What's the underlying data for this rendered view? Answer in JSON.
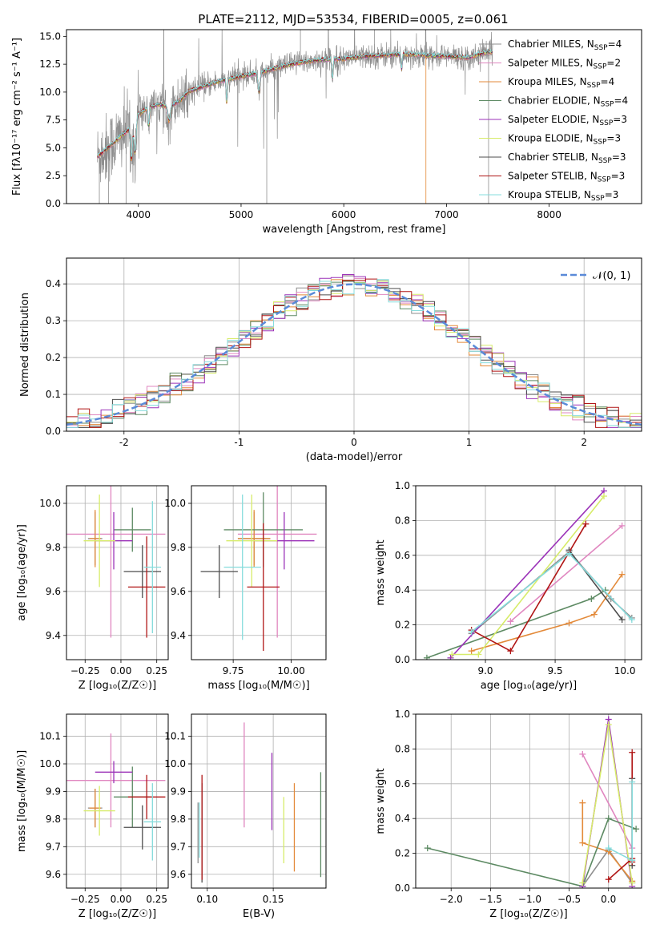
{
  "figure_title": "PLATE=2112, MJD=53534, FIBERID=0005, z=0.061",
  "colors": {
    "chabrier_miles": "#8e8e8e",
    "salpeter_miles": "#e087c0",
    "kroupa_miles": "#e38a3a",
    "chabrier_elodie": "#5d8a63",
    "salpeter_elodie": "#9b32b8",
    "kroupa_elodie": "#d7ec6a",
    "chabrier_stelib": "#4d4d4d",
    "salpeter_stelib": "#b01515",
    "kroupa_stelib": "#86dcdc",
    "normal_curve": "#5a8ad8",
    "grid": "#b0b0b0"
  },
  "chart_data": [
    {
      "id": "spectrum",
      "type": "line",
      "title": "PLATE=2112, MJD=53534, FIBERID=0005, z=0.061",
      "xlabel": "wavelength [Angstrom, rest frame]",
      "ylabel": "Flux [fλ10⁻¹⁷ erg cm⁻² s⁻¹ A⁻¹]",
      "xlim": [
        3300,
        8900
      ],
      "ylim": [
        0,
        15.6
      ],
      "xticks": [
        4000,
        5000,
        6000,
        7000,
        8000
      ],
      "yticks": [
        0.0,
        2.5,
        5.0,
        7.5,
        10.0,
        12.5,
        15.0
      ],
      "grid": false,
      "legend_position": "right",
      "legend": [
        {
          "label": "Chabrier MILES, N",
          "sub": "SSP",
          "suffix": "=4",
          "color_key": "chabrier_miles"
        },
        {
          "label": "Salpeter MILES, N",
          "sub": "SSP",
          "suffix": "=2",
          "color_key": "salpeter_miles"
        },
        {
          "label": "Kroupa MILES, N",
          "sub": "SSP",
          "suffix": "=4",
          "color_key": "kroupa_miles"
        },
        {
          "label": "Chabrier ELODIE, N",
          "sub": "SSP",
          "suffix": "=4",
          "color_key": "chabrier_elodie"
        },
        {
          "label": "Salpeter ELODIE, N",
          "sub": "SSP",
          "suffix": "=3",
          "color_key": "salpeter_elodie"
        },
        {
          "label": "Kroupa ELODIE, N",
          "sub": "SSP",
          "suffix": "=3",
          "color_key": "kroupa_elodie"
        },
        {
          "label": "Chabrier STELIB, N",
          "sub": "SSP",
          "suffix": "=3",
          "color_key": "chabrier_stelib"
        },
        {
          "label": "Salpeter STELIB, N",
          "sub": "SSP",
          "suffix": "=3",
          "color_key": "salpeter_stelib"
        },
        {
          "label": "Kroupa STELIB, N",
          "sub": "SSP",
          "suffix": "=3",
          "color_key": "kroupa_stelib"
        }
      ],
      "continuum": {
        "x": [
          3600,
          3700,
          3800,
          3900,
          4000,
          4100,
          4200,
          4300,
          4400,
          4500,
          4600,
          4800,
          5000,
          5200,
          5400,
          5600,
          5800,
          6000,
          6200,
          6400,
          6600,
          6800,
          7000,
          7200,
          7400
        ],
        "y": [
          4.2,
          5.0,
          5.8,
          6.6,
          8.0,
          8.6,
          8.9,
          8.7,
          9.2,
          10.1,
          10.4,
          11.0,
          11.4,
          11.8,
          12.3,
          12.7,
          12.9,
          13.0,
          13.2,
          13.3,
          13.4,
          13.3,
          13.2,
          13.1,
          13.6
        ]
      },
      "model_range": [
        3600,
        7450
      ],
      "observed_range": [
        3600,
        7450
      ]
    },
    {
      "id": "residuals",
      "type": "histogram",
      "xlabel": "(data-model)/error",
      "ylabel": "Normed distribution",
      "xlim": [
        -2.5,
        2.5
      ],
      "ylim": [
        0,
        0.47
      ],
      "xticks": [
        -2,
        -1,
        0,
        1,
        2
      ],
      "yticks": [
        0.0,
        0.1,
        0.2,
        0.3,
        0.4
      ],
      "grid": true,
      "legend_position": "top-right",
      "legend_label": "𝒩(0, 1)",
      "bin_width": 0.1,
      "bin_start": -2.5
    },
    {
      "id": "age-vs-Z",
      "type": "errorbar",
      "xlabel": "Z [log₁₀(Z/Z☉)]",
      "ylabel": "age  [log₁₀(age/yr)]",
      "xlim": [
        -0.38,
        0.33
      ],
      "ylim": [
        9.29,
        10.08
      ],
      "xticks": [
        -0.25,
        0.0,
        0.25
      ],
      "xticklabels": [
        "−0.25",
        "0.00",
        "0.25"
      ],
      "yticks": [
        9.4,
        9.6,
        9.8,
        10.0
      ],
      "grid": true,
      "points": [
        {
          "model": "chabrier_miles",
          "x": -0.18,
          "xerr": 0.05,
          "y": 9.84,
          "yerr": 0.12
        },
        {
          "model": "salpeter_miles",
          "x": -0.07,
          "xerr": 0.38,
          "y": 9.86,
          "yerr": 0.47
        },
        {
          "model": "kroupa_miles",
          "x": -0.18,
          "xerr": 0.04,
          "y": 9.84,
          "yerr": 0.13
        },
        {
          "model": "chabrier_elodie",
          "x": 0.08,
          "xerr": 0.13,
          "y": 9.88,
          "yerr": 0.1
        },
        {
          "model": "salpeter_elodie",
          "x": -0.05,
          "xerr": 0.13,
          "y": 9.83,
          "yerr": 0.13
        },
        {
          "model": "kroupa_elodie",
          "x": -0.15,
          "xerr": 0.11,
          "y": 9.83,
          "yerr": 0.21
        },
        {
          "model": "chabrier_stelib",
          "x": 0.15,
          "xerr": 0.13,
          "y": 9.69,
          "yerr": 0.12
        },
        {
          "model": "salpeter_stelib",
          "x": 0.18,
          "xerr": 0.13,
          "y": 9.62,
          "yerr": 0.23
        },
        {
          "model": "kroupa_stelib",
          "x": 0.22,
          "xerr": 0.06,
          "y": 9.71,
          "yerr": 0.3
        }
      ]
    },
    {
      "id": "age-vs-mass",
      "type": "errorbar",
      "xlabel": "mass [log₁₀(M/M☉)]",
      "ylabel": "",
      "xlim": [
        9.57,
        10.15
      ],
      "ylim": [
        9.29,
        10.08
      ],
      "xticks": [
        9.75,
        10.0
      ],
      "xticklabels": [
        "9.75",
        "10.00"
      ],
      "yticks": [
        9.4,
        9.6,
        9.8,
        10.0
      ],
      "grid": true,
      "points": [
        {
          "model": "chabrier_miles",
          "x": 9.84,
          "xerr": 0.07,
          "y": 9.84,
          "yerr": 0.12
        },
        {
          "model": "salpeter_miles",
          "x": 9.94,
          "xerr": 0.17,
          "y": 9.86,
          "yerr": 0.47
        },
        {
          "model": "kroupa_miles",
          "x": 9.84,
          "xerr": 0.07,
          "y": 9.84,
          "yerr": 0.13
        },
        {
          "model": "chabrier_elodie",
          "x": 9.88,
          "xerr": 0.17,
          "y": 9.88,
          "yerr": 0.17
        },
        {
          "model": "salpeter_elodie",
          "x": 9.97,
          "xerr": 0.13,
          "y": 9.83,
          "yerr": 0.13
        },
        {
          "model": "kroupa_elodie",
          "x": 9.83,
          "xerr": 0.11,
          "y": 9.83,
          "yerr": 0.21
        },
        {
          "model": "chabrier_stelib",
          "x": 9.69,
          "xerr": 0.08,
          "y": 9.69,
          "yerr": 0.12
        },
        {
          "model": "salpeter_stelib",
          "x": 9.88,
          "xerr": 0.07,
          "y": 9.62,
          "yerr": 0.29
        },
        {
          "model": "kroupa_stelib",
          "x": 9.79,
          "xerr": 0.08,
          "y": 9.71,
          "yerr": 0.33
        }
      ]
    },
    {
      "id": "massweight-vs-age",
      "type": "line",
      "xlabel": "age  [log₁₀(age/yr)]",
      "ylabel": "mass weight",
      "xlim": [
        8.5,
        10.12
      ],
      "ylim": [
        0,
        1.0
      ],
      "xticks": [
        9.0,
        9.5,
        10.0
      ],
      "xticklabels": [
        "9.0",
        "9.5",
        "10.0"
      ],
      "yticks": [
        0.0,
        0.2,
        0.4,
        0.6,
        0.8,
        1.0
      ],
      "grid": true,
      "series": [
        {
          "model": "chabrier_miles",
          "x": [
            8.9,
            9.6,
            9.9,
            10.05
          ],
          "y": [
            0.15,
            0.62,
            0.35,
            0.24
          ]
        },
        {
          "model": "salpeter_miles",
          "x": [
            9.18,
            9.98
          ],
          "y": [
            0.22,
            0.77
          ]
        },
        {
          "model": "kroupa_miles",
          "x": [
            8.9,
            9.6,
            9.78,
            9.98
          ],
          "y": [
            0.05,
            0.21,
            0.26,
            0.49
          ]
        },
        {
          "model": "chabrier_elodie",
          "x": [
            8.58,
            9.76,
            9.86
          ],
          "y": [
            0.01,
            0.35,
            0.4
          ]
        },
        {
          "model": "salpeter_elodie",
          "x": [
            8.75,
            9.85
          ],
          "y": [
            0.01,
            0.97
          ]
        },
        {
          "model": "kroupa_elodie",
          "x": [
            8.76,
            8.95,
            9.85
          ],
          "y": [
            0.03,
            0.03,
            0.94
          ]
        },
        {
          "model": "chabrier_stelib",
          "x": [
            9.6,
            9.98
          ],
          "y": [
            0.63,
            0.23
          ]
        },
        {
          "model": "salpeter_stelib",
          "x": [
            8.9,
            9.18,
            9.72
          ],
          "y": [
            0.17,
            0.05,
            0.78
          ]
        },
        {
          "model": "kroupa_stelib",
          "x": [
            8.9,
            9.6,
            10.05
          ],
          "y": [
            0.16,
            0.61,
            0.23
          ]
        }
      ]
    },
    {
      "id": "mass-vs-Z",
      "type": "errorbar",
      "xlabel": "Z [log₁₀(Z/Z☉)]",
      "ylabel": "mass [log₁₀(M/M☉)]",
      "xlim": [
        -0.38,
        0.33
      ],
      "ylim": [
        9.55,
        10.18
      ],
      "xticks": [
        -0.25,
        0.0,
        0.25
      ],
      "xticklabels": [
        "−0.25",
        "0.00",
        "0.25"
      ],
      "yticks": [
        9.6,
        9.7,
        9.8,
        9.9,
        10.0,
        10.1
      ],
      "grid": true,
      "points": [
        {
          "model": "chabrier_miles",
          "x": -0.18,
          "xerr": 0.05,
          "y": 9.84,
          "yerr": 0.07
        },
        {
          "model": "salpeter_miles",
          "x": -0.07,
          "xerr": 0.38,
          "y": 9.94,
          "yerr": 0.17
        },
        {
          "model": "kroupa_miles",
          "x": -0.18,
          "xerr": 0.04,
          "y": 9.84,
          "yerr": 0.07
        },
        {
          "model": "chabrier_elodie",
          "x": 0.08,
          "xerr": 0.13,
          "y": 9.88,
          "yerr": 0.11
        },
        {
          "model": "salpeter_elodie",
          "x": -0.05,
          "xerr": 0.13,
          "y": 9.97,
          "yerr": 0.04
        },
        {
          "model": "kroupa_elodie",
          "x": -0.15,
          "xerr": 0.11,
          "y": 9.83,
          "yerr": 0.09
        },
        {
          "model": "chabrier_stelib",
          "x": 0.15,
          "xerr": 0.13,
          "y": 9.77,
          "yerr": 0.08
        },
        {
          "model": "salpeter_stelib",
          "x": 0.18,
          "xerr": 0.13,
          "y": 9.88,
          "yerr": 0.08
        },
        {
          "model": "kroupa_stelib",
          "x": 0.22,
          "xerr": 0.06,
          "y": 9.79,
          "yerr": 0.14
        }
      ]
    },
    {
      "id": "mass-vs-EBV",
      "type": "errorbar",
      "xlabel": "E(B-V)",
      "ylabel": "",
      "xlim": [
        0.088,
        0.19
      ],
      "ylim": [
        9.55,
        10.18
      ],
      "xticks": [
        0.1,
        0.15
      ],
      "xticklabels": [
        "0.10",
        "0.15"
      ],
      "yticks": [
        9.6,
        9.7,
        9.8,
        9.9,
        10.0,
        10.1
      ],
      "grid": true,
      "points": [
        {
          "model": "chabrier_miles",
          "x": 0.093,
          "xerr": 0,
          "y": 9.75,
          "yerr": 0.11
        },
        {
          "model": "salpeter_miles",
          "x": 0.128,
          "xerr": 0,
          "y": 9.96,
          "yerr": 0.19
        },
        {
          "model": "kroupa_miles",
          "x": 0.166,
          "xerr": 0,
          "y": 9.77,
          "yerr": 0.16
        },
        {
          "model": "chabrier_elodie",
          "x": 0.186,
          "xerr": 0,
          "y": 9.78,
          "yerr": 0.19
        },
        {
          "model": "salpeter_elodie",
          "x": 0.149,
          "xerr": 0,
          "y": 9.9,
          "yerr": 0.14
        },
        {
          "model": "kroupa_elodie",
          "x": 0.158,
          "xerr": 0,
          "y": 9.76,
          "yerr": 0.12
        },
        {
          "model": "chabrier_stelib",
          "x": 0.096,
          "xerr": 0,
          "y": 9.75,
          "yerr": 0.18
        },
        {
          "model": "salpeter_stelib",
          "x": 0.096,
          "xerr": 0,
          "y": 9.77,
          "yerr": 0.19
        },
        {
          "model": "kroupa_stelib",
          "x": 0.094,
          "xerr": 0,
          "y": 9.76,
          "yerr": 0.1
        }
      ]
    },
    {
      "id": "massweight-vs-Z",
      "type": "line",
      "xlabel": "Z [log₁₀(Z/Z☉)]",
      "ylabel": "mass weight",
      "xlim": [
        -2.45,
        0.42
      ],
      "ylim": [
        0,
        1.0
      ],
      "xticks": [
        -2.0,
        -1.5,
        -1.0,
        -0.5,
        0.0
      ],
      "xticklabels": [
        "−2.0",
        "−1.5",
        "−1.0",
        "−0.5",
        "0.0"
      ],
      "yticks": [
        0.0,
        0.2,
        0.4,
        0.6,
        0.8,
        1.0
      ],
      "grid": true,
      "series": [
        {
          "model": "chabrier_miles",
          "x": [
            -0.33,
            0.0,
            0.3
          ],
          "y": [
            0.01,
            0.22,
            0.03
          ]
        },
        {
          "model": "salpeter_miles",
          "x": [
            -0.33,
            0.3
          ],
          "y": [
            0.77,
            0.23
          ]
        },
        {
          "model": "kroupa_miles",
          "x": [
            -0.33,
            -0.33,
            0.0,
            0.3
          ],
          "y": [
            0.49,
            0.26,
            0.21,
            0.04
          ]
        },
        {
          "model": "chabrier_elodie",
          "x": [
            -2.3,
            -0.33,
            0.0,
            0.35
          ],
          "y": [
            0.23,
            0.01,
            0.4,
            0.34
          ]
        },
        {
          "model": "salpeter_elodie",
          "x": [
            -0.33,
            0.0,
            0.3
          ],
          "y": [
            0.01,
            0.97,
            0.01
          ]
        },
        {
          "model": "kroupa_elodie",
          "x": [
            -0.33,
            0.0,
            0.3
          ],
          "y": [
            0.03,
            0.94,
            0.03
          ]
        },
        {
          "model": "chabrier_stelib",
          "x": [
            0.3,
            0.3
          ],
          "y": [
            0.63,
            0.13
          ]
        },
        {
          "model": "salpeter_stelib",
          "x": [
            0.0,
            0.3,
            0.3,
            0.3
          ],
          "y": [
            0.05,
            0.17,
            0.78,
            0.15
          ]
        },
        {
          "model": "kroupa_stelib",
          "x": [
            0.0,
            0.3,
            0.3
          ],
          "y": [
            0.23,
            0.16,
            0.61
          ]
        }
      ]
    }
  ]
}
